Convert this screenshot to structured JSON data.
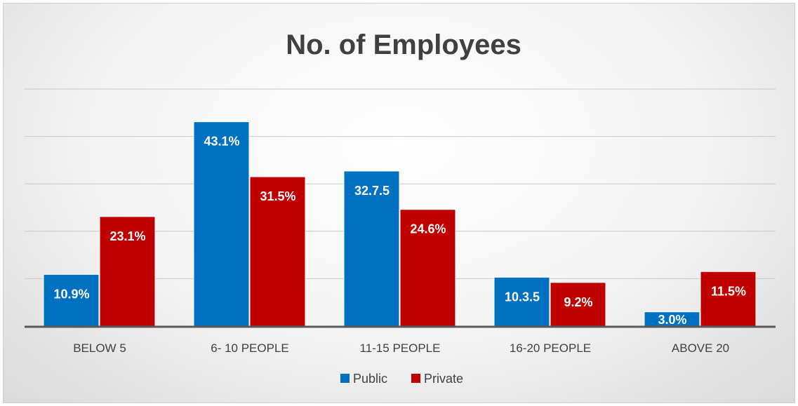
{
  "chart_data": {
    "type": "bar",
    "title": "No. of Employees",
    "xlabel": "",
    "ylabel": "",
    "categories": [
      "BELOW 5",
      "6- 10 PEOPLE",
      "11-15 PEOPLE",
      "16-20 PEOPLE",
      "ABOVE 20"
    ],
    "series": [
      {
        "name": "Public",
        "color": "#0070c0",
        "values": [
          10.9,
          43.1,
          32.7,
          10.3,
          3.0
        ],
        "labels": [
          "10.9%",
          "43.1%",
          "32.7.5",
          "10.3.5",
          "3.0%"
        ]
      },
      {
        "name": "Private",
        "color": "#c00000",
        "values": [
          23.1,
          31.5,
          24.6,
          9.2,
          11.5
        ],
        "labels": [
          "23.1%",
          "31.5%",
          "24.6%",
          "9.2%",
          "11.5%"
        ]
      }
    ],
    "ylim": [
      0,
      50
    ],
    "grid": true,
    "legend_position": "bottom"
  }
}
